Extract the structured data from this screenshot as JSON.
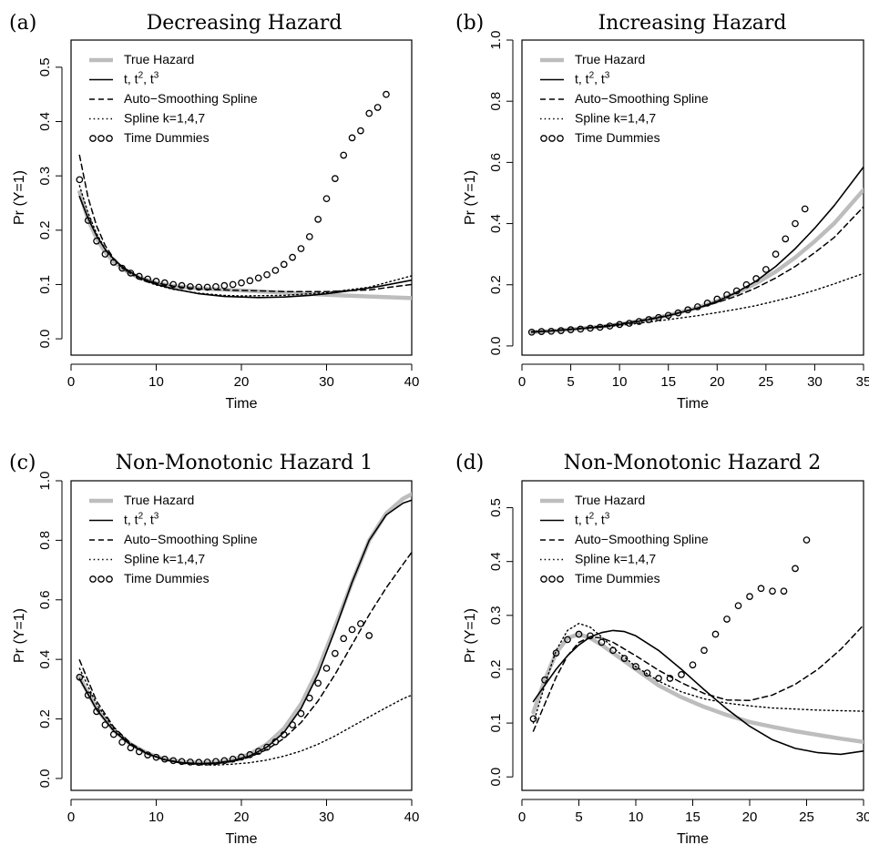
{
  "legend_entries": [
    {
      "text": "True Hazard"
    },
    {
      "text": "t, t",
      "sup1": "2",
      "mid": ", t",
      "sup2": "3"
    },
    {
      "text": "Auto−Smoothing Spline"
    },
    {
      "text": "Spline k=1,4,7"
    },
    {
      "text": "Time Dummies"
    }
  ],
  "series_styles": {
    "true_hazard": {
      "color": "#bdbdbd",
      "dash": "solid"
    },
    "cubic": {
      "color": "#000000",
      "dash": "solid"
    },
    "auto_spline": {
      "color": "#000000",
      "dash": "dashed"
    },
    "spline_k": {
      "color": "#000000",
      "dash": "dotted"
    },
    "time_dummies": {
      "color": "#000000",
      "marker": "open-circle"
    }
  },
  "chart_data": [
    {
      "type": "line",
      "panel_label": "(a)",
      "title": "Decreasing Hazard",
      "xlabel": "Time",
      "ylabel": "Pr (Y=1)",
      "xlim": [
        0,
        40
      ],
      "ylim": [
        -0.03,
        0.55
      ],
      "xticks": [
        0,
        10,
        20,
        30,
        40
      ],
      "yticks": [
        0.0,
        0.1,
        0.2,
        0.3,
        0.4,
        0.5
      ],
      "legend_position": "top-left",
      "series": [
        {
          "key": "true_hazard",
          "x": [
            1,
            2,
            3,
            4,
            5,
            6,
            7,
            8,
            10,
            12,
            14,
            16,
            20,
            25,
            30,
            35,
            40
          ],
          "y": [
            0.27,
            0.22,
            0.185,
            0.16,
            0.142,
            0.13,
            0.12,
            0.113,
            0.103,
            0.097,
            0.094,
            0.092,
            0.089,
            0.085,
            0.081,
            0.078,
            0.075
          ]
        },
        {
          "key": "cubic",
          "x": [
            1,
            2,
            3,
            4,
            5,
            6,
            8,
            10,
            12,
            15,
            18,
            20,
            22,
            25,
            28,
            30,
            33,
            36,
            40
          ],
          "y": [
            0.262,
            0.222,
            0.19,
            0.165,
            0.147,
            0.133,
            0.113,
            0.1,
            0.092,
            0.083,
            0.078,
            0.077,
            0.076,
            0.077,
            0.08,
            0.083,
            0.089,
            0.096,
            0.108
          ]
        },
        {
          "key": "auto_spline",
          "x": [
            1,
            2,
            3,
            4,
            5,
            6,
            8,
            10,
            12,
            15,
            18,
            20,
            25,
            30,
            35,
            40
          ],
          "y": [
            0.338,
            0.26,
            0.208,
            0.172,
            0.148,
            0.132,
            0.113,
            0.103,
            0.097,
            0.092,
            0.09,
            0.089,
            0.087,
            0.087,
            0.09,
            0.1
          ]
        },
        {
          "key": "spline_k",
          "x": [
            1,
            2,
            3,
            4,
            5,
            6,
            8,
            10,
            12,
            15,
            18,
            20,
            25,
            30,
            35,
            40
          ],
          "y": [
            0.282,
            0.232,
            0.194,
            0.166,
            0.145,
            0.13,
            0.11,
            0.099,
            0.091,
            0.084,
            0.08,
            0.079,
            0.08,
            0.085,
            0.095,
            0.116
          ]
        },
        {
          "key": "time_dummies",
          "x": [
            1,
            2,
            3,
            4,
            5,
            6,
            7,
            8,
            9,
            10,
            11,
            12,
            13,
            14,
            15,
            16,
            17,
            18,
            19,
            20,
            21,
            22,
            23,
            24,
            25,
            26,
            27,
            28,
            29,
            30,
            31,
            32,
            33,
            34,
            35,
            36,
            37
          ],
          "y": [
            0.293,
            0.218,
            0.18,
            0.156,
            0.141,
            0.13,
            0.121,
            0.115,
            0.11,
            0.106,
            0.103,
            0.1,
            0.098,
            0.096,
            0.095,
            0.095,
            0.096,
            0.098,
            0.1,
            0.103,
            0.107,
            0.112,
            0.118,
            0.126,
            0.137,
            0.15,
            0.166,
            0.188,
            0.22,
            0.258,
            0.295,
            0.338,
            0.37,
            0.383,
            0.415,
            0.426,
            0.45
          ]
        }
      ]
    },
    {
      "type": "line",
      "panel_label": "(b)",
      "title": "Increasing Hazard",
      "xlabel": "Time",
      "ylabel": "Pr (Y=1)",
      "xlim": [
        0,
        35
      ],
      "ylim": [
        -0.03,
        1.0
      ],
      "xticks": [
        0,
        5,
        10,
        15,
        20,
        25,
        30,
        35
      ],
      "yticks": [
        0.0,
        0.2,
        0.4,
        0.6,
        0.8,
        1.0
      ],
      "legend_position": "top-left",
      "series": [
        {
          "key": "true_hazard",
          "x": [
            1,
            3,
            5,
            8,
            10,
            13,
            15,
            18,
            20,
            22,
            24,
            26,
            28,
            30,
            32,
            35
          ],
          "y": [
            0.045,
            0.049,
            0.054,
            0.063,
            0.071,
            0.087,
            0.1,
            0.125,
            0.147,
            0.173,
            0.205,
            0.243,
            0.289,
            0.342,
            0.401,
            0.51
          ]
        },
        {
          "key": "cubic",
          "x": [
            1,
            3,
            5,
            8,
            10,
            13,
            15,
            18,
            20,
            22,
            24,
            26,
            28,
            30,
            32,
            35
          ],
          "y": [
            0.045,
            0.049,
            0.054,
            0.062,
            0.07,
            0.086,
            0.099,
            0.124,
            0.146,
            0.175,
            0.212,
            0.26,
            0.318,
            0.385,
            0.459,
            0.585
          ]
        },
        {
          "key": "auto_spline",
          "x": [
            1,
            3,
            5,
            8,
            10,
            13,
            15,
            18,
            20,
            22,
            24,
            26,
            28,
            30,
            32,
            35
          ],
          "y": [
            0.046,
            0.05,
            0.055,
            0.064,
            0.072,
            0.088,
            0.1,
            0.124,
            0.142,
            0.163,
            0.19,
            0.222,
            0.26,
            0.305,
            0.355,
            0.455
          ]
        },
        {
          "key": "spline_k",
          "x": [
            1,
            3,
            5,
            8,
            10,
            13,
            15,
            18,
            20,
            22,
            24,
            26,
            28,
            30,
            32,
            35
          ],
          "y": [
            0.047,
            0.05,
            0.054,
            0.061,
            0.067,
            0.078,
            0.086,
            0.099,
            0.109,
            0.12,
            0.132,
            0.147,
            0.163,
            0.182,
            0.203,
            0.237
          ]
        },
        {
          "key": "time_dummies",
          "x": [
            1,
            2,
            3,
            4,
            5,
            6,
            7,
            8,
            9,
            10,
            11,
            12,
            13,
            14,
            15,
            16,
            17,
            18,
            19,
            20,
            21,
            22,
            23,
            24,
            25,
            26,
            27,
            28,
            29
          ],
          "y": [
            0.045,
            0.047,
            0.048,
            0.05,
            0.053,
            0.055,
            0.058,
            0.061,
            0.065,
            0.07,
            0.074,
            0.08,
            0.086,
            0.093,
            0.1,
            0.108,
            0.118,
            0.128,
            0.14,
            0.153,
            0.167,
            0.18,
            0.2,
            0.22,
            0.25,
            0.3,
            0.35,
            0.4,
            0.448
          ]
        }
      ]
    },
    {
      "type": "line",
      "panel_label": "(c)",
      "title": "Non-Monotonic Hazard 1",
      "xlabel": "Time",
      "ylabel": "Pr (Y=1)",
      "xlim": [
        0,
        40
      ],
      "ylim": [
        -0.04,
        1.0
      ],
      "xticks": [
        0,
        10,
        20,
        30,
        40
      ],
      "yticks": [
        0.0,
        0.2,
        0.4,
        0.6,
        0.8,
        1.0
      ],
      "legend_position": "top-left",
      "series": [
        {
          "key": "true_hazard",
          "x": [
            1,
            3,
            5,
            7,
            9,
            11,
            13,
            15,
            17,
            19,
            21,
            23,
            25,
            27,
            29,
            31,
            33,
            35,
            37,
            39,
            40
          ],
          "y": [
            0.34,
            0.235,
            0.162,
            0.115,
            0.084,
            0.065,
            0.055,
            0.052,
            0.054,
            0.063,
            0.082,
            0.115,
            0.168,
            0.25,
            0.365,
            0.51,
            0.66,
            0.8,
            0.89,
            0.94,
            0.955
          ]
        },
        {
          "key": "cubic",
          "x": [
            1,
            3,
            5,
            7,
            9,
            11,
            13,
            15,
            17,
            19,
            21,
            23,
            25,
            27,
            29,
            31,
            33,
            35,
            37,
            39,
            40
          ],
          "y": [
            0.335,
            0.232,
            0.16,
            0.113,
            0.082,
            0.063,
            0.053,
            0.05,
            0.052,
            0.06,
            0.076,
            0.105,
            0.155,
            0.235,
            0.35,
            0.5,
            0.66,
            0.8,
            0.885,
            0.925,
            0.935
          ]
        },
        {
          "key": "auto_spline",
          "x": [
            1,
            3,
            5,
            7,
            9,
            11,
            13,
            15,
            17,
            19,
            21,
            23,
            25,
            27,
            29,
            31,
            33,
            35,
            37,
            39,
            40
          ],
          "y": [
            0.398,
            0.26,
            0.173,
            0.118,
            0.084,
            0.063,
            0.052,
            0.048,
            0.05,
            0.057,
            0.072,
            0.097,
            0.135,
            0.188,
            0.26,
            0.35,
            0.45,
            0.55,
            0.64,
            0.72,
            0.76
          ]
        },
        {
          "key": "spline_k",
          "x": [
            1,
            3,
            5,
            7,
            9,
            11,
            13,
            15,
            17,
            19,
            21,
            23,
            25,
            27,
            29,
            31,
            33,
            35,
            37,
            39,
            40
          ],
          "y": [
            0.37,
            0.25,
            0.168,
            0.115,
            0.082,
            0.062,
            0.051,
            0.046,
            0.045,
            0.048,
            0.053,
            0.062,
            0.075,
            0.092,
            0.115,
            0.143,
            0.175,
            0.207,
            0.238,
            0.268,
            0.28
          ]
        },
        {
          "key": "time_dummies",
          "x": [
            1,
            2,
            3,
            4,
            5,
            6,
            7,
            8,
            9,
            10,
            11,
            12,
            13,
            14,
            15,
            16,
            17,
            18,
            19,
            20,
            21,
            22,
            23,
            24,
            25,
            26,
            27,
            28,
            29,
            30,
            31,
            32,
            33,
            34,
            35
          ],
          "y": [
            0.34,
            0.28,
            0.225,
            0.18,
            0.148,
            0.122,
            0.103,
            0.09,
            0.079,
            0.071,
            0.065,
            0.06,
            0.057,
            0.055,
            0.054,
            0.055,
            0.057,
            0.06,
            0.065,
            0.072,
            0.08,
            0.091,
            0.105,
            0.123,
            0.147,
            0.18,
            0.218,
            0.27,
            0.32,
            0.37,
            0.42,
            0.47,
            0.5,
            0.52,
            0.48
          ]
        }
      ]
    },
    {
      "type": "line",
      "panel_label": "(d)",
      "title": "Non-Monotonic Hazard 2",
      "xlabel": "Time",
      "ylabel": "Pr (Y=1)",
      "xlim": [
        0,
        30
      ],
      "ylim": [
        -0.025,
        0.55
      ],
      "xticks": [
        0,
        5,
        10,
        15,
        20,
        25,
        30
      ],
      "yticks": [
        0.0,
        0.1,
        0.2,
        0.3,
        0.4,
        0.5
      ],
      "legend_position": "top-left",
      "series": [
        {
          "key": "true_hazard",
          "x": [
            1,
            2,
            3,
            4,
            5,
            6,
            7,
            8,
            10,
            12,
            14,
            16,
            18,
            20,
            22,
            24,
            26,
            28,
            30
          ],
          "y": [
            0.12,
            0.18,
            0.23,
            0.258,
            0.265,
            0.258,
            0.245,
            0.23,
            0.2,
            0.17,
            0.148,
            0.13,
            0.115,
            0.102,
            0.093,
            0.085,
            0.078,
            0.071,
            0.065
          ]
        },
        {
          "key": "cubic",
          "x": [
            1,
            2,
            3,
            4,
            5,
            6,
            7,
            8,
            9,
            10,
            12,
            14,
            16,
            18,
            20,
            22,
            24,
            26,
            28,
            30
          ],
          "y": [
            0.14,
            0.17,
            0.2,
            0.225,
            0.245,
            0.26,
            0.268,
            0.272,
            0.27,
            0.262,
            0.235,
            0.2,
            0.162,
            0.126,
            0.094,
            0.069,
            0.053,
            0.045,
            0.042,
            0.048
          ]
        },
        {
          "key": "auto_spline",
          "x": [
            1,
            2,
            3,
            4,
            5,
            6,
            7,
            8,
            10,
            12,
            14,
            16,
            18,
            20,
            22,
            24,
            26,
            28,
            30
          ],
          "y": [
            0.085,
            0.135,
            0.185,
            0.225,
            0.25,
            0.26,
            0.258,
            0.25,
            0.225,
            0.198,
            0.175,
            0.155,
            0.143,
            0.142,
            0.152,
            0.172,
            0.2,
            0.237,
            0.282
          ]
        },
        {
          "key": "spline_k",
          "x": [
            1,
            2,
            3,
            4,
            5,
            6,
            7,
            8,
            10,
            12,
            14,
            16,
            18,
            20,
            22,
            24,
            26,
            28,
            30
          ],
          "y": [
            0.1,
            0.17,
            0.235,
            0.272,
            0.285,
            0.278,
            0.26,
            0.24,
            0.205,
            0.178,
            0.158,
            0.145,
            0.137,
            0.132,
            0.128,
            0.126,
            0.124,
            0.123,
            0.122
          ]
        },
        {
          "key": "time_dummies",
          "x": [
            1,
            2,
            3,
            4,
            5,
            6,
            7,
            8,
            9,
            10,
            11,
            12,
            13,
            14,
            15,
            16,
            17,
            18,
            19,
            20,
            21,
            22,
            23,
            24,
            25
          ],
          "y": [
            0.108,
            0.18,
            0.23,
            0.255,
            0.265,
            0.262,
            0.25,
            0.235,
            0.22,
            0.205,
            0.193,
            0.183,
            0.183,
            0.19,
            0.208,
            0.235,
            0.265,
            0.293,
            0.318,
            0.335,
            0.35,
            0.345,
            0.345,
            0.387,
            0.44
          ]
        }
      ]
    }
  ]
}
